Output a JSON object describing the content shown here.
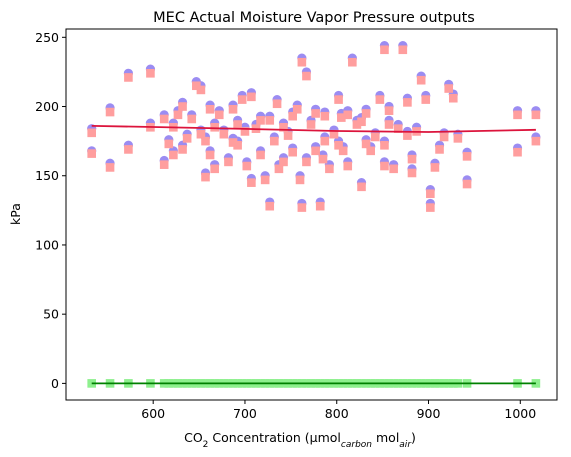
{
  "chart_data": {
    "type": "scatter",
    "title": "MEC Actual Moisture Vapor Pressure outputs",
    "xlabel": {
      "prefix": "CO",
      "sub1": "2",
      "mid": " Concentration (μmol",
      "sub2": "carbon",
      "mid2": " mol",
      "sub3": "air",
      "suffix": ")"
    },
    "ylabel": "kPa",
    "xlim": [
      505,
      1040
    ],
    "ylim": [
      -12,
      256
    ],
    "xticks": [
      600,
      700,
      800,
      900,
      1000
    ],
    "yticks": [
      0,
      50,
      100,
      150,
      200,
      250
    ],
    "grid": false,
    "colors": {
      "series_a_marker": "#9b8cf2",
      "series_b_marker": "#ff9e9e",
      "series_c_marker": "#8ef08e",
      "trend_line": "#dc143c",
      "zero_line": "#008000"
    },
    "series": [
      {
        "marker": "circle",
        "points": [
          [
            533,
            184
          ],
          [
            533,
            168
          ],
          [
            553,
            199
          ],
          [
            553,
            159
          ],
          [
            573,
            224
          ],
          [
            573,
            172
          ],
          [
            597,
            227
          ],
          [
            597,
            188
          ],
          [
            612,
            194
          ],
          [
            612,
            161
          ],
          [
            617,
            176
          ],
          [
            622,
            188
          ],
          [
            622,
            168
          ],
          [
            627,
            197
          ],
          [
            632,
            203
          ],
          [
            632,
            172
          ],
          [
            637,
            180
          ],
          [
            642,
            194
          ],
          [
            647,
            218
          ],
          [
            652,
            215
          ],
          [
            652,
            183
          ],
          [
            657,
            178
          ],
          [
            657,
            152
          ],
          [
            662,
            201
          ],
          [
            662,
            168
          ],
          [
            667,
            188
          ],
          [
            672,
            197
          ],
          [
            677,
            183
          ],
          [
            682,
            163
          ],
          [
            687,
            201
          ],
          [
            687,
            177
          ],
          [
            692,
            190
          ],
          [
            697,
            208
          ],
          [
            702,
            160
          ],
          [
            707,
            210
          ],
          [
            712,
            187
          ],
          [
            717,
            193
          ],
          [
            722,
            150
          ],
          [
            727,
            131
          ],
          [
            732,
            178
          ],
          [
            737,
            158
          ],
          [
            742,
            163
          ],
          [
            747,
            182
          ],
          [
            752,
            196
          ],
          [
            757,
            201
          ],
          [
            762,
            235
          ],
          [
            762,
            130
          ],
          [
            767,
            225
          ],
          [
            772,
            190
          ],
          [
            777,
            171
          ],
          [
            782,
            131
          ],
          [
            787,
            196
          ],
          [
            792,
            158
          ],
          [
            797,
            183
          ],
          [
            802,
            208
          ],
          [
            807,
            171
          ],
          [
            812,
            197
          ],
          [
            817,
            235
          ],
          [
            822,
            190
          ],
          [
            827,
            145
          ],
          [
            832,
            198
          ],
          [
            837,
            171
          ],
          [
            842,
            181
          ],
          [
            847,
            208
          ],
          [
            852,
            244
          ],
          [
            852,
            175
          ],
          [
            857,
            190
          ],
          [
            862,
            158
          ],
          [
            867,
            187
          ],
          [
            872,
            244
          ],
          [
            877,
            206
          ],
          [
            882,
            165
          ],
          [
            887,
            185
          ],
          [
            892,
            222
          ],
          [
            897,
            208
          ],
          [
            902,
            140
          ],
          [
            902,
            130
          ],
          [
            907,
            159
          ],
          [
            912,
            172
          ],
          [
            917,
            181
          ],
          [
            922,
            216
          ],
          [
            927,
            209
          ],
          [
            932,
            180
          ],
          [
            942,
            167
          ],
          [
            942,
            147
          ],
          [
            997,
            197
          ],
          [
            997,
            170
          ],
          [
            1017,
            197
          ],
          [
            1017,
            178
          ],
          [
            707,
            148
          ],
          [
            727,
            193
          ],
          [
            752,
            170
          ],
          [
            777,
            198
          ],
          [
            802,
            175
          ],
          [
            827,
            192
          ],
          [
            852,
            160
          ],
          [
            877,
            182
          ],
          [
            787,
            178
          ],
          [
            767,
            163
          ],
          [
            742,
            188
          ],
          [
            717,
            168
          ],
          [
            692,
            175
          ],
          [
            667,
            158
          ],
          [
            812,
            160
          ],
          [
            832,
            176
          ],
          [
            857,
            200
          ],
          [
            882,
            155
          ],
          [
            760,
            150
          ],
          [
            785,
            165
          ],
          [
            805,
            195
          ],
          [
            735,
            205
          ],
          [
            700,
            185
          ]
        ]
      },
      {
        "marker": "square",
        "points": [
          [
            533,
            181
          ],
          [
            533,
            166
          ],
          [
            553,
            196
          ],
          [
            553,
            156
          ],
          [
            573,
            221
          ],
          [
            573,
            169
          ],
          [
            597,
            224
          ],
          [
            597,
            185
          ],
          [
            612,
            191
          ],
          [
            612,
            158
          ],
          [
            617,
            173
          ],
          [
            622,
            185
          ],
          [
            622,
            165
          ],
          [
            627,
            194
          ],
          [
            632,
            200
          ],
          [
            632,
            169
          ],
          [
            637,
            177
          ],
          [
            642,
            191
          ],
          [
            647,
            215
          ],
          [
            652,
            212
          ],
          [
            652,
            180
          ],
          [
            657,
            175
          ],
          [
            657,
            149
          ],
          [
            662,
            198
          ],
          [
            662,
            165
          ],
          [
            667,
            185
          ],
          [
            672,
            194
          ],
          [
            677,
            180
          ],
          [
            682,
            160
          ],
          [
            687,
            198
          ],
          [
            687,
            174
          ],
          [
            692,
            187
          ],
          [
            697,
            205
          ],
          [
            702,
            157
          ],
          [
            707,
            207
          ],
          [
            712,
            184
          ],
          [
            717,
            190
          ],
          [
            722,
            147
          ],
          [
            727,
            128
          ],
          [
            732,
            175
          ],
          [
            737,
            155
          ],
          [
            742,
            160
          ],
          [
            747,
            179
          ],
          [
            752,
            193
          ],
          [
            757,
            198
          ],
          [
            762,
            232
          ],
          [
            762,
            127
          ],
          [
            767,
            222
          ],
          [
            772,
            187
          ],
          [
            777,
            168
          ],
          [
            782,
            128
          ],
          [
            787,
            193
          ],
          [
            792,
            155
          ],
          [
            797,
            180
          ],
          [
            802,
            205
          ],
          [
            807,
            168
          ],
          [
            812,
            194
          ],
          [
            817,
            232
          ],
          [
            822,
            187
          ],
          [
            827,
            142
          ],
          [
            832,
            195
          ],
          [
            837,
            168
          ],
          [
            842,
            178
          ],
          [
            847,
            205
          ],
          [
            852,
            241
          ],
          [
            852,
            172
          ],
          [
            857,
            187
          ],
          [
            862,
            155
          ],
          [
            867,
            184
          ],
          [
            872,
            241
          ],
          [
            877,
            203
          ],
          [
            882,
            162
          ],
          [
            887,
            182
          ],
          [
            892,
            219
          ],
          [
            897,
            205
          ],
          [
            902,
            137
          ],
          [
            902,
            127
          ],
          [
            907,
            156
          ],
          [
            912,
            169
          ],
          [
            917,
            178
          ],
          [
            922,
            213
          ],
          [
            927,
            206
          ],
          [
            932,
            177
          ],
          [
            942,
            164
          ],
          [
            942,
            144
          ],
          [
            997,
            194
          ],
          [
            997,
            167
          ],
          [
            1017,
            194
          ],
          [
            1017,
            175
          ],
          [
            707,
            145
          ],
          [
            727,
            190
          ],
          [
            752,
            167
          ],
          [
            777,
            195
          ],
          [
            802,
            172
          ],
          [
            827,
            189
          ],
          [
            852,
            157
          ],
          [
            877,
            179
          ],
          [
            787,
            175
          ],
          [
            767,
            160
          ],
          [
            742,
            185
          ],
          [
            717,
            165
          ],
          [
            692,
            172
          ],
          [
            667,
            155
          ],
          [
            812,
            157
          ],
          [
            832,
            173
          ],
          [
            857,
            197
          ],
          [
            882,
            152
          ],
          [
            760,
            147
          ],
          [
            785,
            162
          ],
          [
            805,
            192
          ],
          [
            735,
            202
          ],
          [
            700,
            182
          ]
        ]
      },
      {
        "marker": "square",
        "points": [
          [
            533,
            0
          ],
          [
            553,
            0
          ],
          [
            573,
            0
          ],
          [
            597,
            0
          ],
          [
            612,
            0
          ],
          [
            617,
            0
          ],
          [
            622,
            0
          ],
          [
            627,
            0
          ],
          [
            632,
            0
          ],
          [
            637,
            0
          ],
          [
            642,
            0
          ],
          [
            647,
            0
          ],
          [
            652,
            0
          ],
          [
            657,
            0
          ],
          [
            662,
            0
          ],
          [
            667,
            0
          ],
          [
            672,
            0
          ],
          [
            677,
            0
          ],
          [
            682,
            0
          ],
          [
            687,
            0
          ],
          [
            692,
            0
          ],
          [
            697,
            0
          ],
          [
            702,
            0
          ],
          [
            707,
            0
          ],
          [
            712,
            0
          ],
          [
            717,
            0
          ],
          [
            722,
            0
          ],
          [
            727,
            0
          ],
          [
            732,
            0
          ],
          [
            737,
            0
          ],
          [
            742,
            0
          ],
          [
            747,
            0
          ],
          [
            752,
            0
          ],
          [
            757,
            0
          ],
          [
            762,
            0
          ],
          [
            767,
            0
          ],
          [
            772,
            0
          ],
          [
            777,
            0
          ],
          [
            782,
            0
          ],
          [
            787,
            0
          ],
          [
            792,
            0
          ],
          [
            797,
            0
          ],
          [
            802,
            0
          ],
          [
            807,
            0
          ],
          [
            812,
            0
          ],
          [
            817,
            0
          ],
          [
            822,
            0
          ],
          [
            827,
            0
          ],
          [
            832,
            0
          ],
          [
            837,
            0
          ],
          [
            842,
            0
          ],
          [
            847,
            0
          ],
          [
            852,
            0
          ],
          [
            857,
            0
          ],
          [
            862,
            0
          ],
          [
            867,
            0
          ],
          [
            872,
            0
          ],
          [
            877,
            0
          ],
          [
            882,
            0
          ],
          [
            887,
            0
          ],
          [
            892,
            0
          ],
          [
            897,
            0
          ],
          [
            902,
            0
          ],
          [
            907,
            0
          ],
          [
            912,
            0
          ],
          [
            917,
            0
          ],
          [
            922,
            0
          ],
          [
            927,
            0
          ],
          [
            932,
            0
          ],
          [
            942,
            0
          ],
          [
            997,
            0
          ],
          [
            1017,
            0
          ]
        ]
      }
    ],
    "lines": [
      {
        "points": [
          [
            533,
            186
          ],
          [
            600,
            185.2
          ],
          [
            700,
            183.8
          ],
          [
            800,
            182.3
          ],
          [
            900,
            181.6
          ],
          [
            1017,
            183.2
          ]
        ]
      },
      {
        "points": [
          [
            533,
            0
          ],
          [
            1017,
            0
          ]
        ]
      }
    ]
  }
}
